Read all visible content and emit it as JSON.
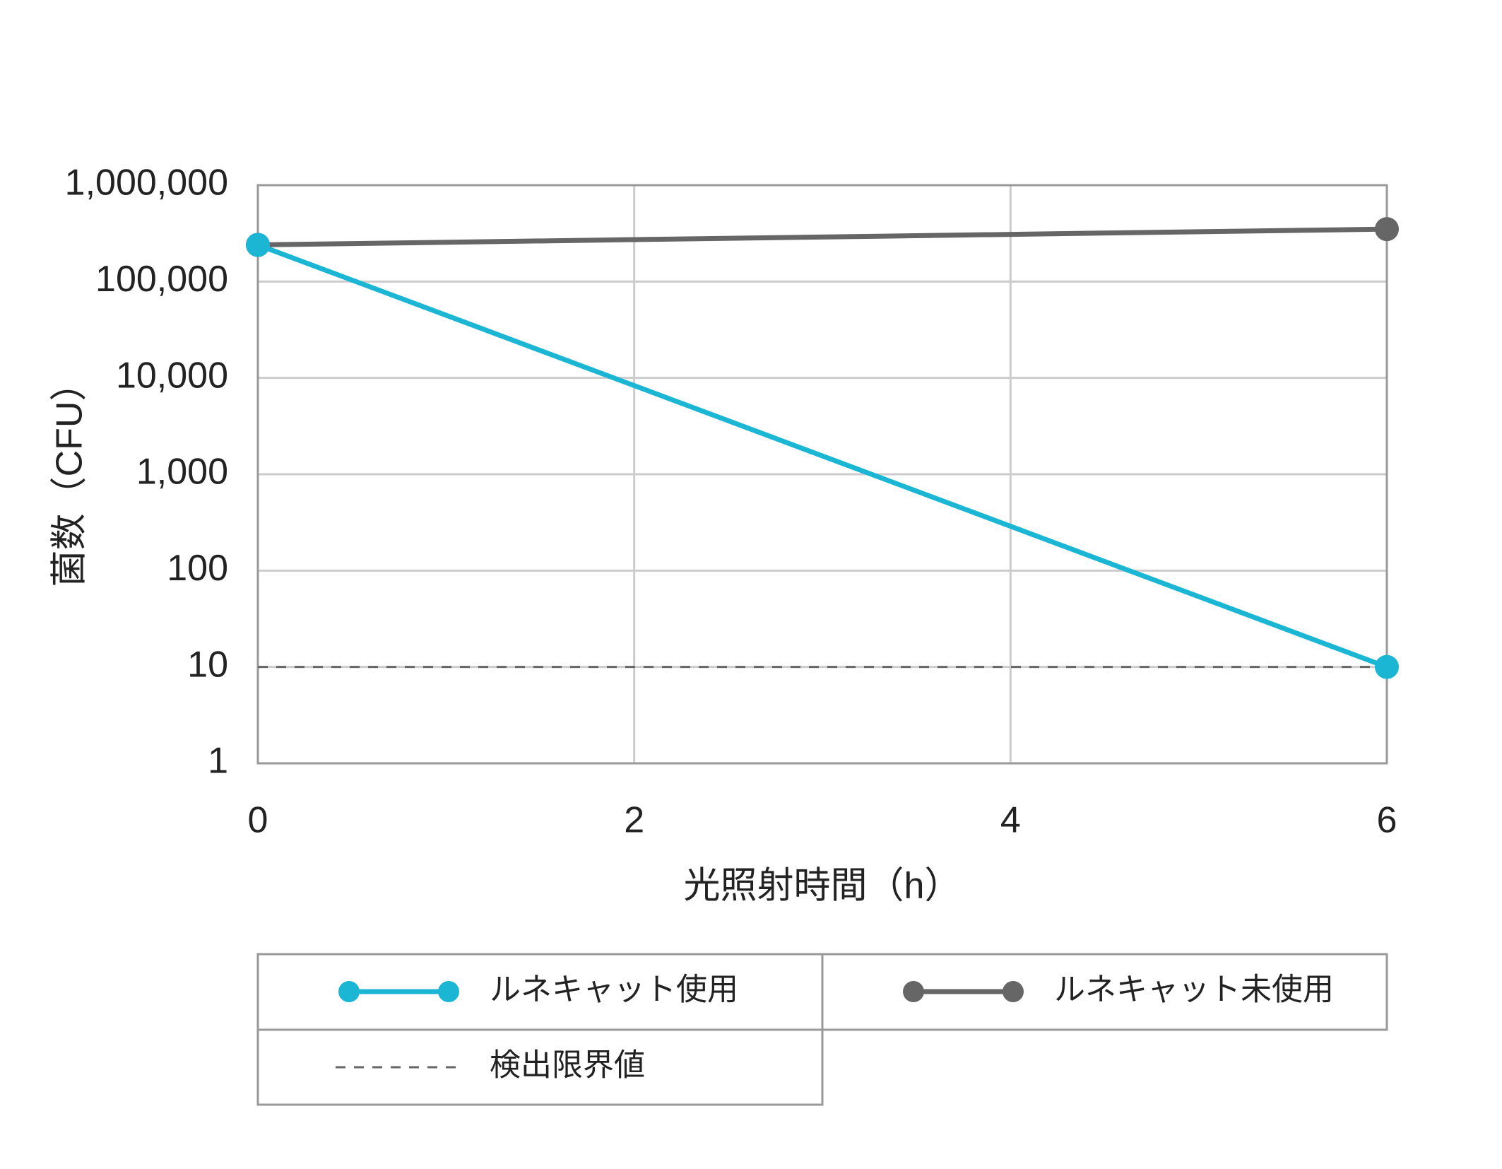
{
  "chart_data": {
    "type": "line",
    "x_label": "光照射時間（h）",
    "y_label": "菌数（CFU）",
    "x": [
      0,
      6
    ],
    "series": [
      {
        "name": "ルネキャット使用",
        "color": "#1ab6d4",
        "values": [
          240000,
          10
        ]
      },
      {
        "name": "ルネキャット未使用",
        "color": "#666666",
        "values": [
          240000,
          350000
        ]
      }
    ],
    "reference_line": {
      "name": "検出限界値",
      "value": 10,
      "color": "#666666",
      "dash": true
    },
    "xlim": [
      0,
      6
    ],
    "xticks": [
      0,
      2,
      4,
      6
    ],
    "ylim": [
      1,
      1000000
    ],
    "yticks": [
      1,
      10,
      100,
      {
        "value": 1000,
        "label": "1,000"
      },
      {
        "value": 10000,
        "label": "10,000"
      },
      {
        "value": 100000,
        "label": "100,000"
      },
      {
        "value": 1000000,
        "label": "1,000,000"
      }
    ],
    "log_y": true,
    "grid": true
  }
}
